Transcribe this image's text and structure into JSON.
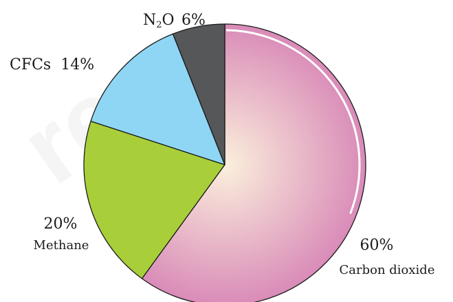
{
  "chart_data": {
    "type": "pie",
    "start_angle_deg": 0,
    "direction": "clockwise",
    "slices": [
      {
        "name": "Carbon dioxide",
        "value": 60,
        "label": "60%",
        "color": "#d98bb8",
        "highlight": "#fbf0dc"
      },
      {
        "name": "Methane",
        "value": 20,
        "label": "20%",
        "color": "#a8cf3a"
      },
      {
        "name": "CFCs",
        "value": 14,
        "label": "14%",
        "color": "#8fd6f5"
      },
      {
        "name": "N2O",
        "value": 6,
        "label": "6%",
        "color": "#555759"
      }
    ],
    "labels": {
      "co2_pct": "60%",
      "co2_name": "Carbon dioxide",
      "methane_pct": "20%",
      "methane_name": "Methane",
      "cfcs": "CFCs  14%",
      "n2o_base": "N",
      "n2o_sub": "2",
      "n2o_rest": "O",
      "n2o_pct": "6%"
    },
    "watermark": "re"
  }
}
